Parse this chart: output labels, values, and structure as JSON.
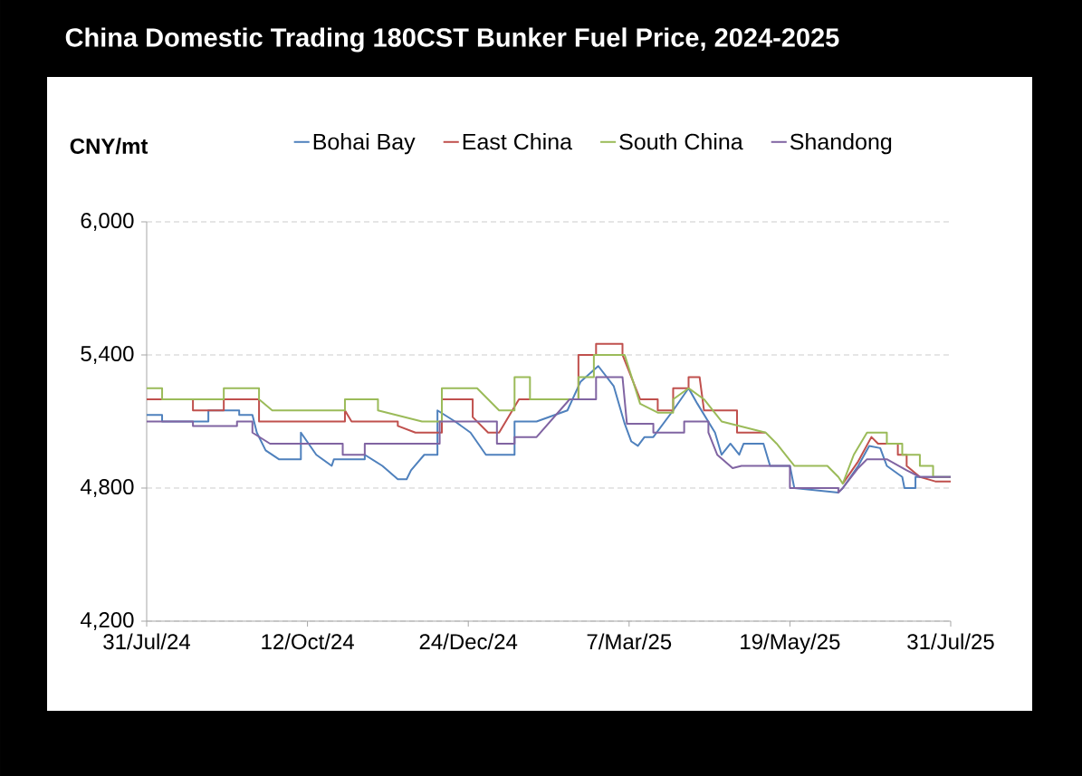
{
  "chart_data": {
    "type": "line",
    "title": "China Domestic Trading 180CST Bunker Fuel Price, 2024-2025",
    "ylabel": "CNY/mt",
    "xlim": [
      "2024-07-31",
      "2025-07-31"
    ],
    "xticks": [
      {
        "value": "2024-07-31",
        "label": "31/Jul/24"
      },
      {
        "value": "2024-10-12",
        "label": "12/Oct/24"
      },
      {
        "value": "2024-12-24",
        "label": "24/Dec/24"
      },
      {
        "value": "2025-03-07",
        "label": "7/Mar/25"
      },
      {
        "value": "2025-05-19",
        "label": "19/May/25"
      },
      {
        "value": "2025-07-31",
        "label": "31/Jul/25"
      }
    ],
    "ylim": [
      4200,
      6000
    ],
    "yticks": [
      {
        "value": 4200,
        "label": "4,200"
      },
      {
        "value": 4800,
        "label": "4,800"
      },
      {
        "value": 5400,
        "label": "5,400"
      },
      {
        "value": 6000,
        "label": "6,000"
      }
    ],
    "grid": "y",
    "legend": "top",
    "series": [
      {
        "name": "Bohai Bay",
        "color": "#4f81bd",
        "x": [
          "2024-07-31",
          "2024-08-07",
          "2024-08-07",
          "2024-08-28",
          "2024-08-28",
          "2024-09-11",
          "2024-09-11",
          "2024-09-17",
          "2024-09-19",
          "2024-09-23",
          "2024-09-29",
          "2024-10-09",
          "2024-10-09",
          "2024-10-16",
          "2024-10-23",
          "2024-10-24",
          "2024-11-07",
          "2024-11-07",
          "2024-11-15",
          "2024-11-22",
          "2024-11-26",
          "2024-11-28",
          "2024-12-04",
          "2024-12-10",
          "2024-12-10",
          "2024-12-18",
          "2024-12-25",
          "2025-01-01",
          "2025-01-14",
          "2025-01-14",
          "2025-01-24",
          "2025-02-07",
          "2025-02-13",
          "2025-02-21",
          "2025-02-28",
          "2025-03-05",
          "2025-03-08",
          "2025-03-11",
          "2025-03-14",
          "2025-03-18",
          "2025-03-27",
          "2025-04-03",
          "2025-04-07",
          "2025-04-15",
          "2025-04-18",
          "2025-04-22",
          "2025-04-26",
          "2025-04-28",
          "2025-05-07",
          "2025-05-10",
          "2025-05-19",
          "2025-05-21",
          "2025-06-10",
          "2025-06-12",
          "2025-06-19",
          "2025-06-24",
          "2025-06-29",
          "2025-07-02",
          "2025-07-09",
          "2025-07-10",
          "2025-07-15",
          "2025-07-15",
          "2025-07-31"
        ],
        "values": [
          5130,
          5130,
          5100,
          5100,
          5150,
          5150,
          5130,
          5130,
          5050,
          4970,
          4930,
          4930,
          5050,
          4950,
          4900,
          4930,
          4930,
          4950,
          4900,
          4840,
          4840,
          4880,
          4950,
          4950,
          5150,
          5100,
          5050,
          4950,
          4950,
          5100,
          5100,
          5150,
          5280,
          5350,
          5260,
          5090,
          5010,
          4990,
          5030,
          5030,
          5150,
          5250,
          5180,
          5050,
          4950,
          5000,
          4950,
          5000,
          5000,
          4900,
          4900,
          4800,
          4780,
          4800,
          4900,
          4990,
          4980,
          4900,
          4850,
          4800,
          4800,
          4850,
          4850
        ]
      },
      {
        "name": "East China",
        "color": "#c0504d",
        "x": [
          "2024-07-31",
          "2024-08-21",
          "2024-08-21",
          "2024-09-04",
          "2024-09-04",
          "2024-09-20",
          "2024-09-20",
          "2024-10-29",
          "2024-10-29",
          "2024-11-01",
          "2024-11-22",
          "2024-11-22",
          "2024-11-30",
          "2024-12-12",
          "2024-12-12",
          "2024-12-26",
          "2024-12-26",
          "2025-01-02",
          "2025-01-07",
          "2025-01-16",
          "2025-02-12",
          "2025-02-12",
          "2025-02-20",
          "2025-02-20",
          "2025-03-04",
          "2025-03-04",
          "2025-03-12",
          "2025-03-20",
          "2025-03-20",
          "2025-03-27",
          "2025-03-27",
          "2025-04-03",
          "2025-04-03",
          "2025-04-08",
          "2025-04-10",
          "2025-04-25",
          "2025-04-25",
          "2025-05-08",
          "2025-05-13",
          "2025-05-21",
          "2025-06-05",
          "2025-06-10",
          "2025-06-12",
          "2025-06-19",
          "2025-06-25",
          "2025-06-28",
          "2025-07-07",
          "2025-07-07",
          "2025-07-11",
          "2025-07-11",
          "2025-07-17",
          "2025-07-24",
          "2025-07-31"
        ],
        "values": [
          5200,
          5200,
          5150,
          5150,
          5200,
          5200,
          5100,
          5100,
          5150,
          5100,
          5100,
          5080,
          5050,
          5050,
          5200,
          5200,
          5120,
          5050,
          5050,
          5200,
          5200,
          5400,
          5400,
          5450,
          5450,
          5400,
          5200,
          5200,
          5150,
          5150,
          5250,
          5250,
          5300,
          5300,
          5150,
          5150,
          5050,
          5050,
          null,
          null,
          null,
          null,
          4820,
          4920,
          5030,
          5000,
          5000,
          4950,
          4950,
          4900,
          4850,
          4830,
          4830
        ]
      },
      {
        "name": "South China",
        "color": "#9bbb59",
        "x": [
          "2024-07-31",
          "2024-08-07",
          "2024-08-07",
          "2024-09-04",
          "2024-09-04",
          "2024-09-20",
          "2024-09-20",
          "2024-09-26",
          "2024-10-29",
          "2024-10-29",
          "2024-11-13",
          "2024-11-13",
          "2024-12-03",
          "2024-12-12",
          "2024-12-12",
          "2024-12-28",
          "2025-01-02",
          "2025-01-07",
          "2025-01-14",
          "2025-01-14",
          "2025-01-21",
          "2025-01-21",
          "2025-02-12",
          "2025-02-12",
          "2025-02-19",
          "2025-02-19",
          "2025-03-05",
          "2025-03-12",
          "2025-03-20",
          "2025-03-27",
          "2025-03-27",
          "2025-04-03",
          "2025-04-10",
          "2025-04-18",
          "2025-05-08",
          "2025-05-13",
          "2025-05-21",
          "2025-06-05",
          "2025-06-10",
          "2025-06-12",
          "2025-06-17",
          "2025-06-23",
          "2025-07-02",
          "2025-07-02",
          "2025-07-09",
          "2025-07-09",
          "2025-07-17",
          "2025-07-17",
          "2025-07-23",
          "2025-07-23",
          "2025-07-31"
        ],
        "values": [
          5250,
          5250,
          5200,
          5200,
          5250,
          5250,
          5200,
          5150,
          5150,
          5200,
          5200,
          5150,
          5100,
          5100,
          5250,
          5250,
          5200,
          5150,
          5150,
          5300,
          5300,
          5200,
          5200,
          5300,
          5300,
          5400,
          5400,
          5180,
          5140,
          5140,
          5200,
          5250,
          5200,
          5100,
          5050,
          5000,
          4900,
          4900,
          4850,
          4820,
          4950,
          5050,
          5050,
          5000,
          5000,
          4950,
          4950,
          4900,
          4900,
          4850,
          4850
        ]
      },
      {
        "name": "Shandong",
        "color": "#8064a2",
        "x": [
          "2024-07-31",
          "2024-08-21",
          "2024-08-21",
          "2024-09-10",
          "2024-09-10",
          "2024-09-17",
          "2024-09-17",
          "2024-09-25",
          "2024-10-28",
          "2024-10-28",
          "2024-11-07",
          "2024-11-07",
          "2024-12-11",
          "2024-12-11",
          "2025-01-06",
          "2025-01-06",
          "2025-01-14",
          "2025-01-14",
          "2025-01-24",
          "2025-02-08",
          "2025-02-20",
          "2025-02-20",
          "2025-03-04",
          "2025-03-06",
          "2025-03-18",
          "2025-03-18",
          "2025-04-01",
          "2025-04-01",
          "2025-04-12",
          "2025-04-12",
          "2025-04-16",
          "2025-04-23",
          "2025-04-27",
          "2025-05-19",
          "2025-05-19",
          "2025-06-10",
          "2025-06-10",
          "2025-06-12",
          "2025-06-19",
          "2025-06-23",
          "2025-07-02",
          "2025-07-11",
          "2025-07-17",
          "2025-07-31"
        ],
        "values": [
          5100,
          5100,
          5080,
          5080,
          5100,
          5100,
          5050,
          5000,
          5000,
          4950,
          4950,
          5000,
          5000,
          5100,
          5100,
          5000,
          5000,
          5030,
          5030,
          5200,
          5200,
          5300,
          5300,
          5090,
          5090,
          5050,
          5050,
          5100,
          5100,
          5050,
          4950,
          4890,
          4900,
          4900,
          4800,
          4800,
          4780,
          4800,
          4890,
          4930,
          4930,
          4880,
          4850,
          4850
        ]
      }
    ]
  }
}
